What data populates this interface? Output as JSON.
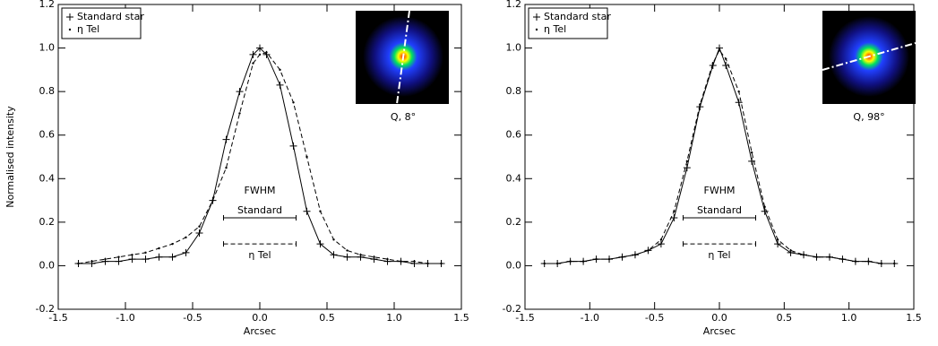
{
  "chart_data": [
    {
      "type": "line",
      "xlabel": "Arcsec",
      "ylabel": "Normalised intensity",
      "xlim": [
        -1.5,
        1.5
      ],
      "ylim": [
        -0.2,
        1.2
      ],
      "xticks": [
        -1.5,
        {
          "value": -1,
          "label": "-1.0"
        },
        -0.5,
        {
          "value": 0,
          "label": "0.0"
        },
        0.5,
        {
          "value": 1,
          "label": "1.0"
        },
        1.5
      ],
      "yticks": [
        -0.2,
        {
          "value": 0,
          "label": "0.0"
        },
        0.2,
        0.4,
        0.6,
        0.8,
        {
          "value": 1,
          "label": "1.0"
        },
        1.2
      ],
      "legend": "upper left",
      "x": [
        -1.35,
        -1.25,
        -1.15,
        -1.05,
        -0.95,
        -0.85,
        -0.75,
        -0.65,
        -0.55,
        -0.45,
        -0.35,
        -0.25,
        -0.15,
        -0.05,
        0,
        0.05,
        0.15,
        0.25,
        0.35,
        0.45,
        0.55,
        0.65,
        0.75,
        0.85,
        0.95,
        1.05,
        1.15,
        1.25,
        1.35
      ],
      "series": [
        {
          "name": "Standard star",
          "color": "#000000",
          "style": "solid",
          "values": [
            0.01,
            0.01,
            0.02,
            0.02,
            0.03,
            0.03,
            0.04,
            0.04,
            0.06,
            0.15,
            0.3,
            0.58,
            0.8,
            0.97,
            1.0,
            0.97,
            0.83,
            0.55,
            0.25,
            0.1,
            0.05,
            0.04,
            0.04,
            0.03,
            0.02,
            0.02,
            0.01,
            0.01,
            0.01
          ]
        },
        {
          "name": "η Tel",
          "color": "#000000",
          "style": "dashed",
          "values": [
            0.01,
            0.02,
            0.03,
            0.04,
            0.05,
            0.06,
            0.08,
            0.1,
            0.13,
            0.18,
            0.3,
            0.45,
            0.7,
            0.93,
            0.97,
            0.98,
            0.9,
            0.75,
            0.5,
            0.25,
            0.12,
            0.07,
            0.05,
            0.04,
            0.03,
            0.02,
            0.02,
            0.01,
            0.01
          ]
        }
      ],
      "fwhm_title": "FWHM",
      "fwhm": [
        {
          "label": "Standard",
          "x": [
            -0.27,
            0.27
          ],
          "y": 0.22,
          "style": "solid"
        },
        {
          "label": "η Tel",
          "x": [
            -0.27,
            0.27
          ],
          "y": 0.1,
          "style": "dashed"
        }
      ],
      "inset_caption": "Q, 8°"
    },
    {
      "type": "line",
      "xlabel": "Arcsec",
      "xlim": [
        -1.5,
        1.5
      ],
      "ylim": [
        -0.2,
        1.2
      ],
      "xticks": [
        -1.5,
        {
          "value": -1,
          "label": "-1.0"
        },
        -0.5,
        {
          "value": 0,
          "label": "0.0"
        },
        0.5,
        {
          "value": 1,
          "label": "1.0"
        },
        1.5
      ],
      "yticks": [
        -0.2,
        {
          "value": 0,
          "label": "0.0"
        },
        0.2,
        0.4,
        0.6,
        0.8,
        {
          "value": 1,
          "label": "1.0"
        },
        1.2
      ],
      "legend": "upper left",
      "x": [
        -1.35,
        -1.25,
        -1.15,
        -1.05,
        -0.95,
        -0.85,
        -0.75,
        -0.65,
        -0.55,
        -0.45,
        -0.35,
        -0.25,
        -0.15,
        -0.05,
        0,
        0.05,
        0.15,
        0.25,
        0.35,
        0.45,
        0.55,
        0.65,
        0.75,
        0.85,
        0.95,
        1.05,
        1.15,
        1.25,
        1.35
      ],
      "series": [
        {
          "name": "Standard star",
          "color": "#000000",
          "style": "solid",
          "values": [
            0.01,
            0.01,
            0.02,
            0.02,
            0.03,
            0.03,
            0.04,
            0.05,
            0.07,
            0.1,
            0.22,
            0.45,
            0.73,
            0.92,
            1.0,
            0.92,
            0.75,
            0.48,
            0.25,
            0.1,
            0.06,
            0.05,
            0.04,
            0.04,
            0.03,
            0.02,
            0.02,
            0.01,
            0.01
          ]
        },
        {
          "name": "η Tel",
          "color": "#000000",
          "style": "dashed",
          "values": [
            0.01,
            0.01,
            0.02,
            0.02,
            0.03,
            0.03,
            0.04,
            0.05,
            0.07,
            0.12,
            0.25,
            0.48,
            0.74,
            0.93,
            0.99,
            0.95,
            0.8,
            0.52,
            0.27,
            0.12,
            0.07,
            0.05,
            0.04,
            0.04,
            0.03,
            0.02,
            0.02,
            0.01,
            0.01
          ]
        }
      ],
      "fwhm_title": "FWHM",
      "fwhm": [
        {
          "label": "Standard",
          "x": [
            -0.28,
            0.28
          ],
          "y": 0.22,
          "style": "solid"
        },
        {
          "label": "η Tel",
          "x": [
            -0.28,
            0.28
          ],
          "y": 0.1,
          "style": "dashed"
        }
      ],
      "inset_caption": "Q, 98°"
    }
  ]
}
